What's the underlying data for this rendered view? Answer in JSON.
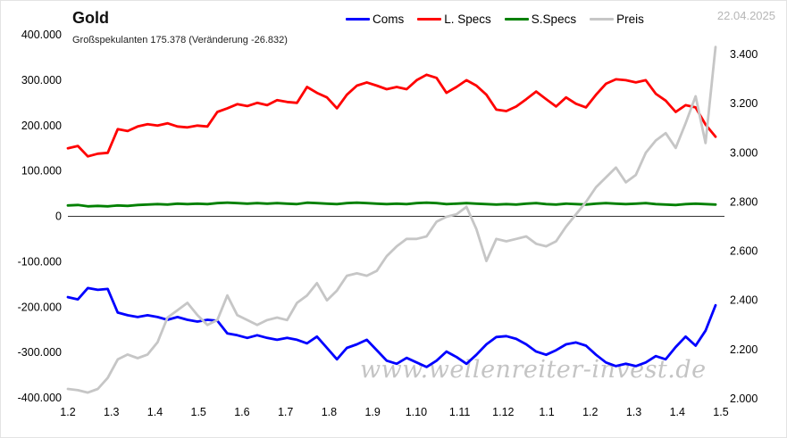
{
  "header": {
    "title": "Gold",
    "subtitle": "Großspekulanten 175.378 (Veränderung -26.832)",
    "date": "22.04.2025"
  },
  "legend": {
    "items": [
      {
        "label": "Coms",
        "color": "#0000ff"
      },
      {
        "label": "L. Specs",
        "color": "#ff0000"
      },
      {
        "label": "S.Specs",
        "color": "#008000"
      },
      {
        "label": "Preis",
        "color": "#c6c6c6"
      }
    ]
  },
  "watermark": "www.wellenreiter-invest.de",
  "chart_data": {
    "type": "line",
    "title": "Gold",
    "subtitle": "Großspekulanten 175.378 (Veränderung -26.832)",
    "legend_entries": [
      "Coms",
      "L. Specs",
      "S.Specs",
      "Preis"
    ],
    "grid": false,
    "legend_position": "top",
    "x_tick_labels": [
      "1.2",
      "1.3",
      "1.4",
      "1.5",
      "1.6",
      "1.7",
      "1.8",
      "1.9",
      "1.10",
      "1.11",
      "1.12",
      "1.1",
      "1.2",
      "1.3",
      "1.4",
      "1.5"
    ],
    "left_axis": {
      "range": [
        -400000,
        400000
      ],
      "ticks": [
        400000,
        300000,
        200000,
        100000,
        0,
        -100000,
        -200000,
        -300000,
        -400000
      ],
      "labels": [
        "400.000",
        "300.000",
        "200.000",
        "100.000",
        "0",
        "-100.000",
        "-200.000",
        "-300.000",
        "-400.000"
      ],
      "negative_label_color": "#ff0000",
      "positive_label_color": "#000000"
    },
    "right_axis": {
      "range": [
        2000,
        3400
      ],
      "ticks": [
        3400,
        3200,
        3000,
        2800,
        2600,
        2400,
        2200,
        2000
      ],
      "labels": [
        "3.400",
        "3.200",
        "3.000",
        "2.800",
        "2.600",
        "2.400",
        "2.200",
        "2.000"
      ]
    },
    "series": [
      {
        "name": "Coms",
        "color": "#0000ff",
        "axis": "left",
        "values": [
          -178000,
          -183000,
          -158000,
          -162000,
          -160000,
          -212000,
          -218000,
          -222000,
          -218000,
          -222000,
          -228000,
          -222000,
          -228000,
          -232000,
          -228000,
          -230000,
          -258000,
          -262000,
          -268000,
          -262000,
          -268000,
          -272000,
          -268000,
          -272000,
          -280000,
          -265000,
          -290000,
          -315000,
          -290000,
          -282000,
          -272000,
          -295000,
          -318000,
          -325000,
          -312000,
          -322000,
          -332000,
          -318000,
          -298000,
          -310000,
          -325000,
          -305000,
          -282000,
          -266000,
          -264000,
          -270000,
          -282000,
          -298000,
          -305000,
          -295000,
          -282000,
          -278000,
          -285000,
          -305000,
          -322000,
          -330000,
          -325000,
          -330000,
          -322000,
          -308000,
          -315000,
          -288000,
          -265000,
          -285000,
          -252000,
          -196000
        ]
      },
      {
        "name": "L. Specs",
        "color": "#ff0000",
        "axis": "left",
        "values": [
          150000,
          155000,
          132000,
          138000,
          140000,
          192000,
          188000,
          198000,
          203000,
          200000,
          205000,
          198000,
          196000,
          200000,
          198000,
          230000,
          238000,
          247000,
          243000,
          250000,
          245000,
          256000,
          252000,
          250000,
          285000,
          272000,
          262000,
          238000,
          268000,
          288000,
          295000,
          288000,
          280000,
          285000,
          280000,
          300000,
          312000,
          305000,
          272000,
          285000,
          300000,
          288000,
          268000,
          235000,
          232000,
          242000,
          258000,
          275000,
          258000,
          242000,
          262000,
          248000,
          240000,
          268000,
          292000,
          302000,
          300000,
          295000,
          300000,
          270000,
          255000,
          230000,
          245000,
          240000,
          202210,
          175378
        ]
      },
      {
        "name": "S.Specs",
        "color": "#008000",
        "axis": "left",
        "values": [
          24000,
          25000,
          22000,
          23000,
          22000,
          24000,
          23000,
          25000,
          26000,
          27000,
          26000,
          28000,
          27000,
          28000,
          27000,
          29000,
          30000,
          29000,
          28000,
          29000,
          28000,
          29000,
          28000,
          27000,
          30000,
          29000,
          28000,
          27000,
          29000,
          30000,
          29000,
          28000,
          27000,
          28000,
          27000,
          29000,
          30000,
          29000,
          27000,
          28000,
          29000,
          28000,
          27000,
          26000,
          27000,
          26000,
          28000,
          29000,
          27000,
          26000,
          28000,
          27000,
          26000,
          28000,
          29000,
          28000,
          27000,
          28000,
          29000,
          27000,
          26000,
          25000,
          27000,
          28000,
          27000,
          26000
        ]
      },
      {
        "name": "Preis",
        "color": "#c6c6c6",
        "axis": "right",
        "values": [
          2040,
          2035,
          2025,
          2040,
          2085,
          2160,
          2180,
          2165,
          2180,
          2230,
          2330,
          2360,
          2390,
          2340,
          2300,
          2320,
          2420,
          2340,
          2320,
          2300,
          2320,
          2330,
          2320,
          2390,
          2420,
          2470,
          2400,
          2440,
          2500,
          2510,
          2500,
          2520,
          2580,
          2620,
          2650,
          2650,
          2660,
          2720,
          2740,
          2750,
          2780,
          2690,
          2560,
          2650,
          2640,
          2650,
          2660,
          2630,
          2620,
          2640,
          2700,
          2750,
          2800,
          2860,
          2900,
          2940,
          2880,
          2910,
          3000,
          3050,
          3080,
          3020,
          3120,
          3230,
          3040,
          3430
        ]
      }
    ]
  }
}
